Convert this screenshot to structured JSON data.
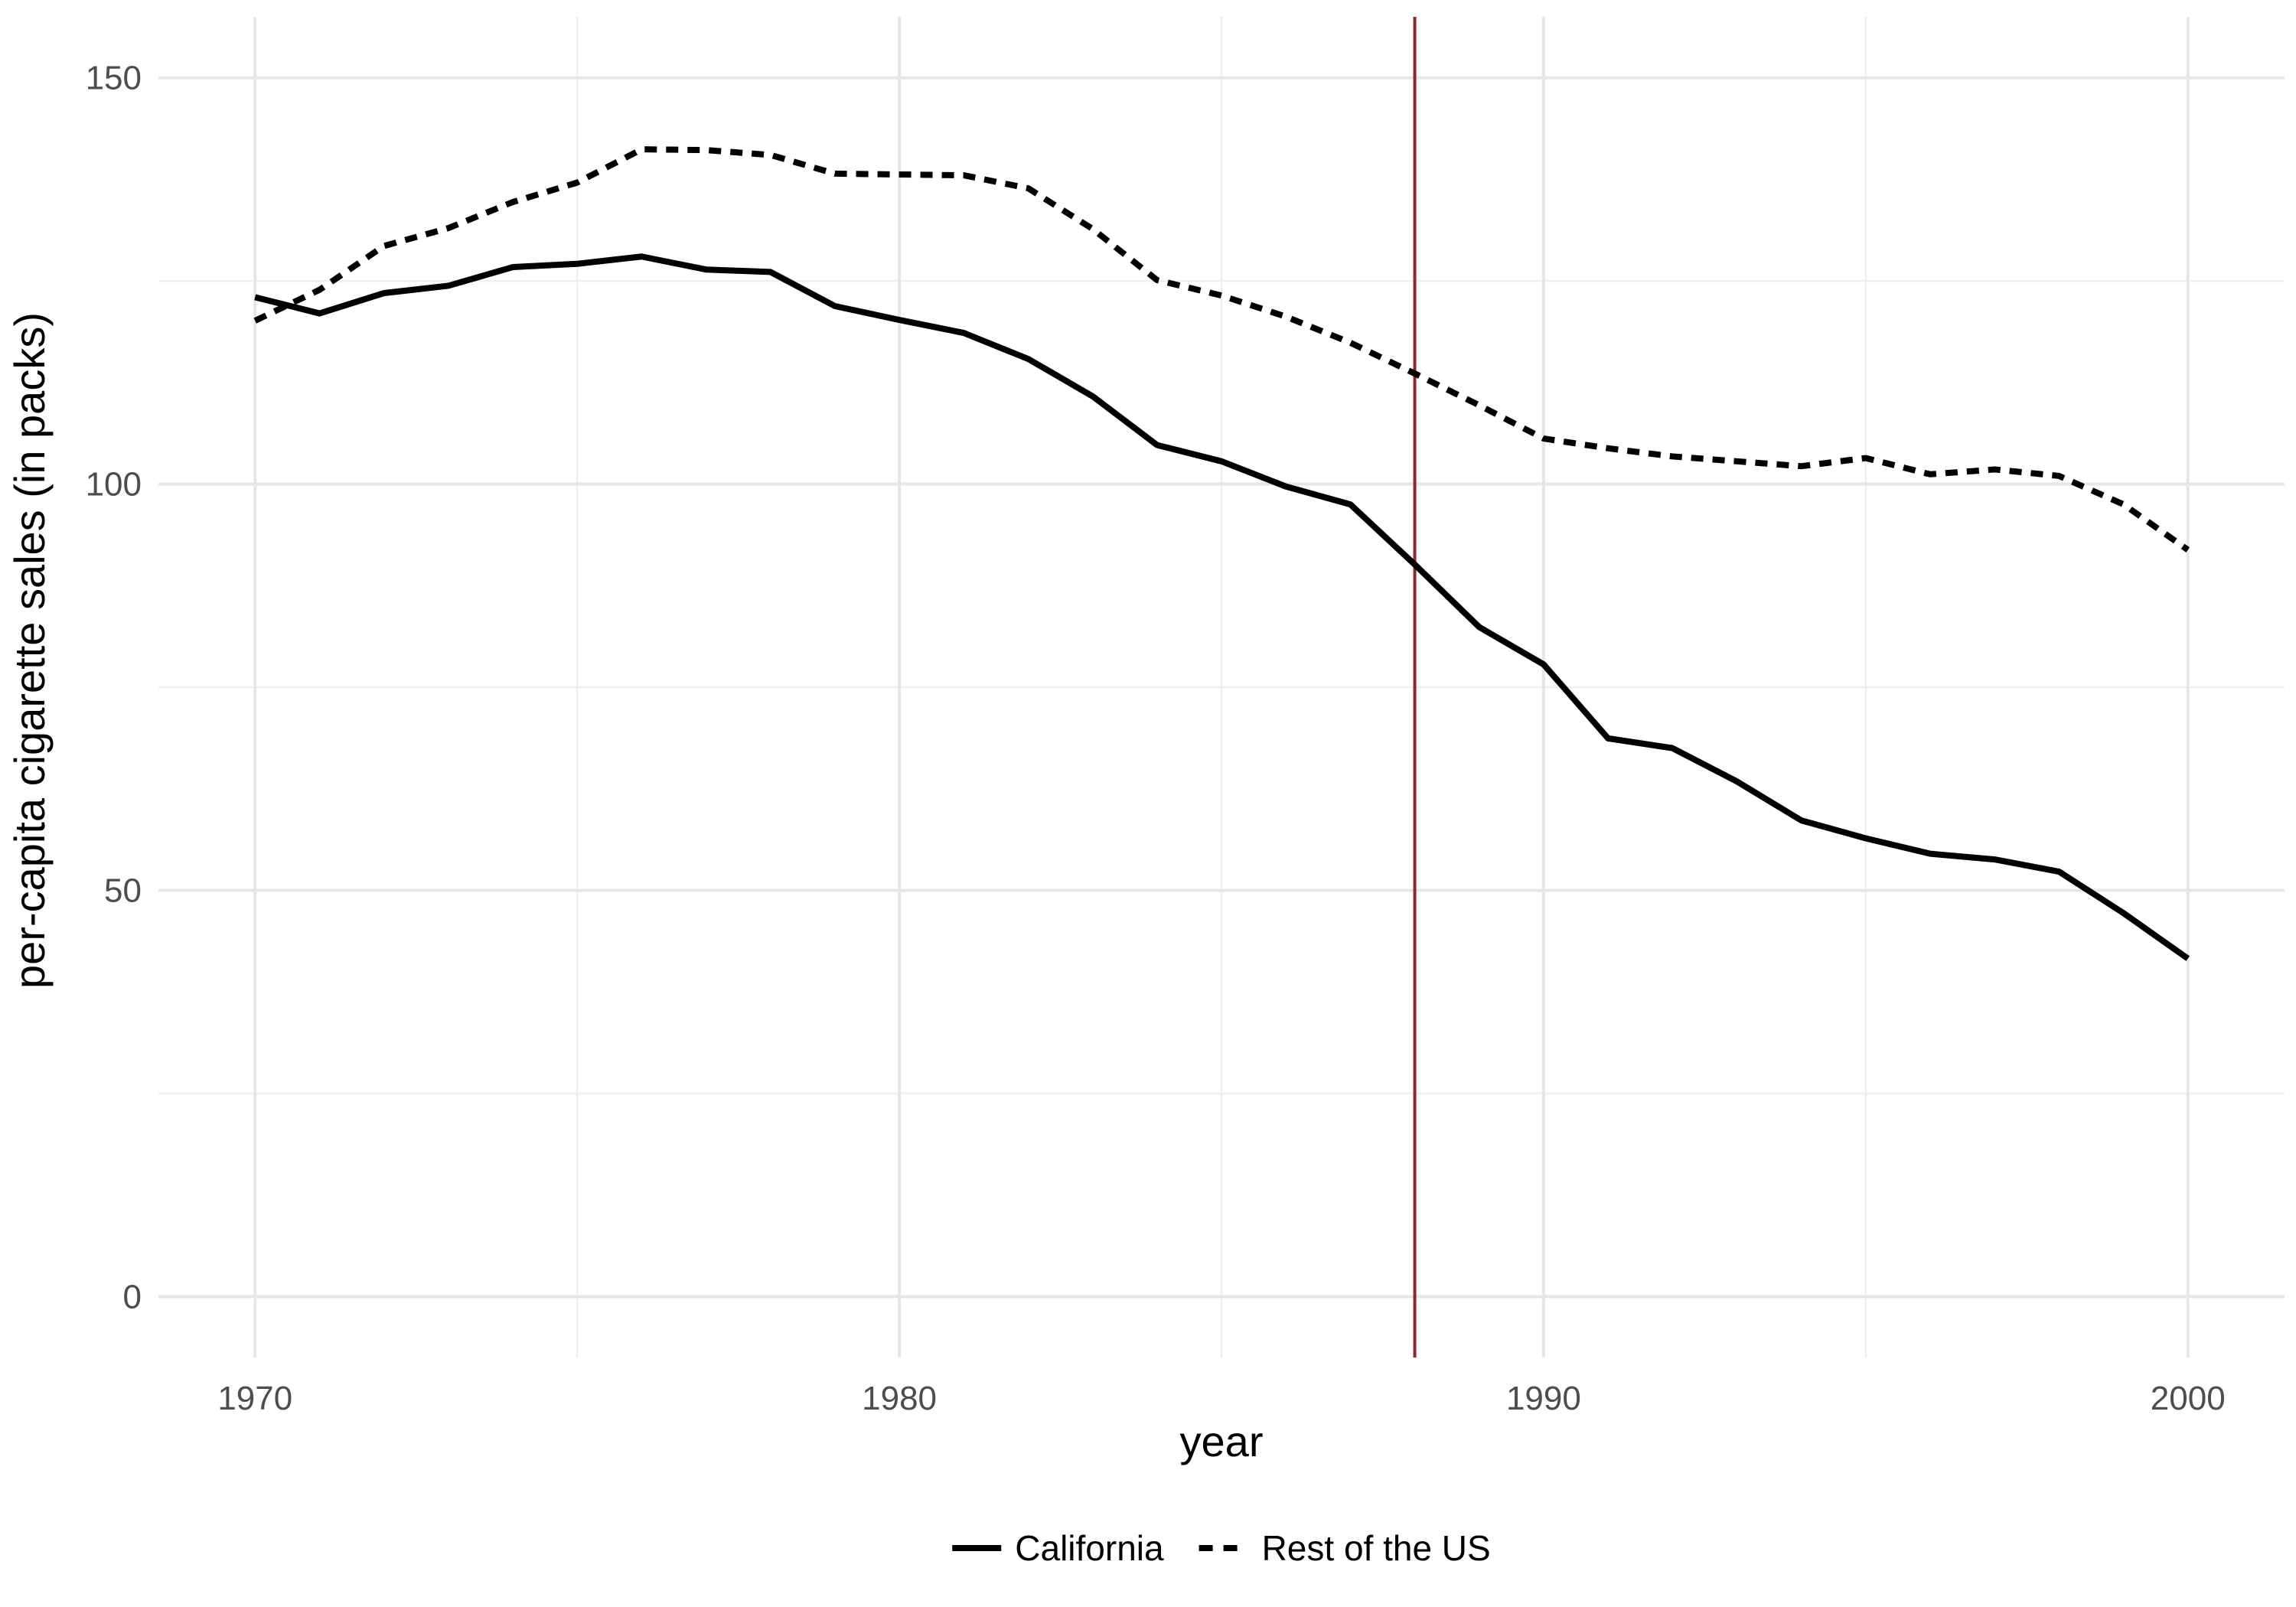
{
  "chart_data": {
    "type": "line",
    "xlabel": "year",
    "ylabel": "per-capita cigarette sales (in packs)",
    "xlim": [
      1968.5,
      2001.5
    ],
    "ylim": [
      -7.5,
      157.5
    ],
    "x_ticks": [
      1970,
      1980,
      1990,
      2000
    ],
    "y_ticks": [
      0,
      50,
      100,
      150
    ],
    "x_minor": [
      1975,
      1985,
      1995
    ],
    "y_minor": [
      25,
      75,
      125
    ],
    "grid": true,
    "legend_position": "bottom",
    "reference_line": {
      "axis": "x",
      "value": 1988,
      "color": "#8b2a2a"
    },
    "x": [
      1970,
      1971,
      1972,
      1973,
      1974,
      1975,
      1976,
      1977,
      1978,
      1979,
      1980,
      1981,
      1982,
      1983,
      1984,
      1985,
      1986,
      1987,
      1988,
      1989,
      1990,
      1991,
      1992,
      1993,
      1994,
      1995,
      1996,
      1997,
      1998,
      1999,
      2000
    ],
    "series": [
      {
        "name": "California",
        "style": "solid",
        "color": "#000000",
        "values": [
          123,
          121,
          123.5,
          124.4,
          126.7,
          127.1,
          128,
          126.4,
          126.1,
          121.9,
          120.2,
          118.6,
          115.4,
          110.8,
          104.8,
          102.8,
          99.7,
          97.5,
          90.1,
          82.4,
          77.8,
          68.7,
          67.5,
          63.4,
          58.6,
          56.4,
          54.5,
          53.8,
          52.3,
          47.2,
          41.6
        ]
      },
      {
        "name": "Rest of the US",
        "style": "dashed",
        "color": "#000000",
        "values": [
          120.1,
          123.9,
          129.3,
          131.5,
          134.7,
          137.1,
          141.2,
          141.1,
          140.5,
          138.2,
          138.1,
          138,
          136.4,
          131.4,
          125.1,
          123.2,
          120.6,
          117.4,
          113.6,
          109.7,
          105.6,
          104.4,
          103.4,
          102.8,
          102.2,
          103.2,
          101.2,
          101.8,
          101,
          97.5,
          91.9
        ]
      }
    ]
  }
}
